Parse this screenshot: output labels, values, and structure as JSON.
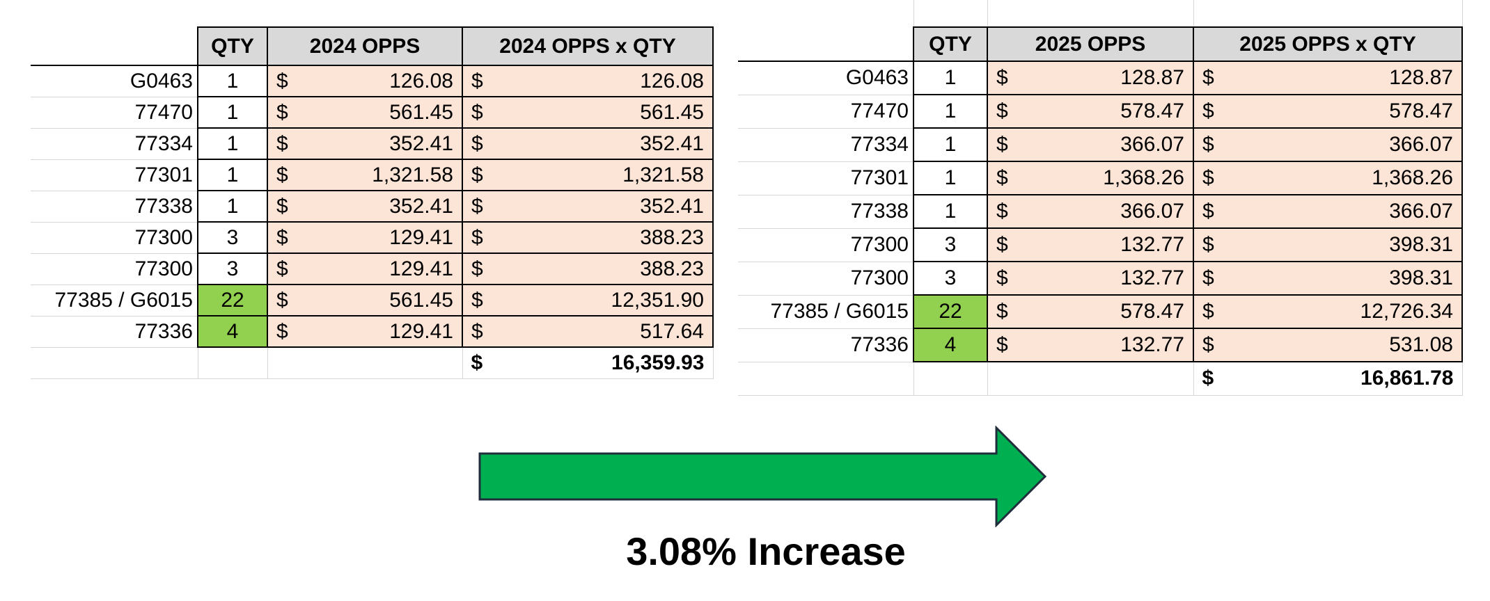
{
  "table_2024": {
    "headers": {
      "qty": "QTY",
      "opps": "2024 OPPS",
      "total": "2024 OPPS x QTY"
    },
    "currency": "$",
    "rows": [
      {
        "code": "G0463",
        "qty": "1",
        "opps": "126.08",
        "total": "126.08",
        "highlight": false
      },
      {
        "code": "77470",
        "qty": "1",
        "opps": "561.45",
        "total": "561.45",
        "highlight": false
      },
      {
        "code": "77334",
        "qty": "1",
        "opps": "352.41",
        "total": "352.41",
        "highlight": false
      },
      {
        "code": "77301",
        "qty": "1",
        "opps": "1,321.58",
        "total": "1,321.58",
        "highlight": false
      },
      {
        "code": "77338",
        "qty": "1",
        "opps": "352.41",
        "total": "352.41",
        "highlight": false
      },
      {
        "code": "77300",
        "qty": "3",
        "opps": "129.41",
        "total": "388.23",
        "highlight": false
      },
      {
        "code": "77300",
        "qty": "3",
        "opps": "129.41",
        "total": "388.23",
        "highlight": false
      },
      {
        "code": "77385 / G6015",
        "qty": "22",
        "opps": "561.45",
        "total": "12,351.90",
        "highlight": true
      },
      {
        "code": "77336",
        "qty": "4",
        "opps": "129.41",
        "total": "517.64",
        "highlight": true
      }
    ],
    "grand_total": "16,359.93"
  },
  "table_2025": {
    "headers": {
      "qty": "QTY",
      "opps": "2025 OPPS",
      "total": "2025 OPPS x QTY"
    },
    "currency": "$",
    "rows": [
      {
        "code": "G0463",
        "qty": "1",
        "opps": "128.87",
        "total": "128.87",
        "highlight": false
      },
      {
        "code": "77470",
        "qty": "1",
        "opps": "578.47",
        "total": "578.47",
        "highlight": false
      },
      {
        "code": "77334",
        "qty": "1",
        "opps": "366.07",
        "total": "366.07",
        "highlight": false
      },
      {
        "code": "77301",
        "qty": "1",
        "opps": "1,368.26",
        "total": "1,368.26",
        "highlight": false
      },
      {
        "code": "77338",
        "qty": "1",
        "opps": "366.07",
        "total": "366.07",
        "highlight": false
      },
      {
        "code": "77300",
        "qty": "3",
        "opps": "132.77",
        "total": "398.31",
        "highlight": false
      },
      {
        "code": "77300",
        "qty": "3",
        "opps": "132.77",
        "total": "398.31",
        "highlight": false
      },
      {
        "code": "77385 / G6015",
        "qty": "22",
        "opps": "578.47",
        "total": "12,726.34",
        "highlight": true
      },
      {
        "code": "77336",
        "qty": "4",
        "opps": "132.77",
        "total": "531.08",
        "highlight": true
      }
    ],
    "grand_total": "16,861.78"
  },
  "arrow": {
    "color": "#00b050",
    "direction": "right"
  },
  "caption": "3.08% Increase"
}
